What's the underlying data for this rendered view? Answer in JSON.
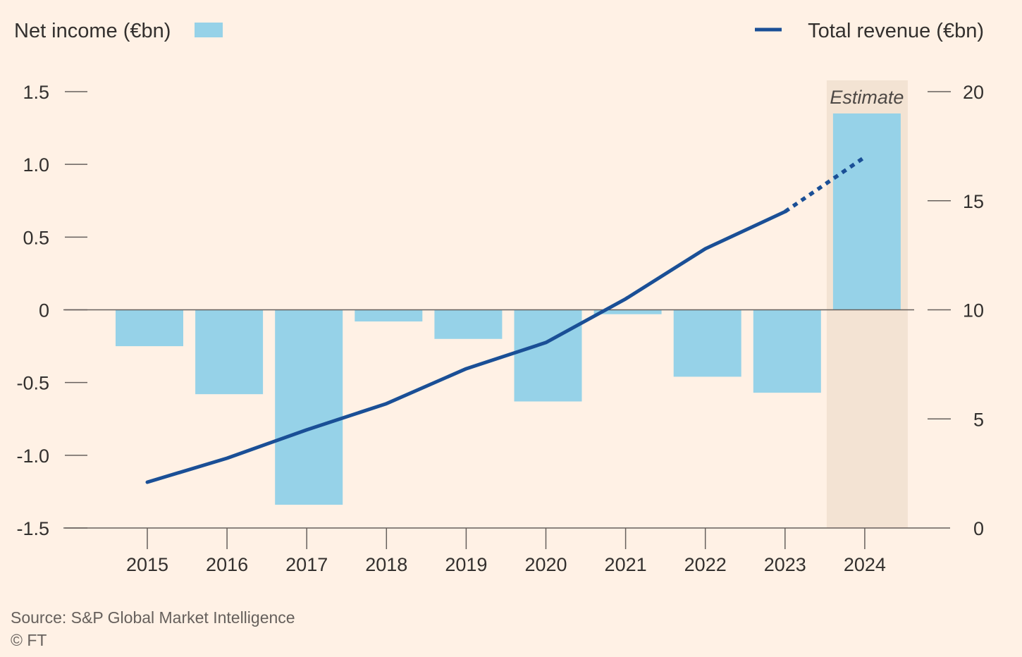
{
  "legend": {
    "bars_label": "Net income (€bn)",
    "line_label": "Total revenue (€bn)"
  },
  "estimate_label": "Estimate",
  "source": "Source: S&P Global Market Intelligence",
  "credit": "© FT",
  "colors": {
    "background": "#FFF1E5",
    "bar": "#96D2E8",
    "line": "#1A4F96",
    "estimate_band": "#F3E3D3",
    "axis": "#66605C"
  },
  "chart_data": {
    "type": "bar+line",
    "categories": [
      "2015",
      "2016",
      "2017",
      "2018",
      "2019",
      "2020",
      "2021",
      "2022",
      "2023",
      "2024"
    ],
    "series": [
      {
        "name": "Net income (€bn)",
        "type": "bar",
        "axis": "left",
        "values": [
          -0.25,
          -0.58,
          -1.34,
          -0.08,
          -0.2,
          -0.63,
          -0.03,
          -0.46,
          -0.57,
          1.35
        ]
      },
      {
        "name": "Total revenue (€bn)",
        "type": "line",
        "axis": "right",
        "values": [
          2.1,
          3.2,
          4.5,
          5.7,
          7.3,
          8.5,
          10.5,
          12.8,
          14.5,
          17.0
        ],
        "dashed_from_index": 8
      }
    ],
    "estimate_category": "2024",
    "y_left": {
      "range": [
        -1.5,
        1.5
      ],
      "ticks": [
        1.5,
        1.0,
        0.5,
        0,
        -0.5,
        -1.0,
        -1.5
      ],
      "tick_labels": [
        "1.5",
        "1.0",
        "0.5",
        "0",
        "-0.5",
        "-1.0",
        "-1.5"
      ]
    },
    "y_right": {
      "range": [
        0,
        20
      ],
      "ticks": [
        20,
        15,
        10,
        5,
        0
      ],
      "tick_labels": [
        "20",
        "15",
        "10",
        "5",
        "0"
      ]
    },
    "legend_placement": "top",
    "grid": false
  }
}
